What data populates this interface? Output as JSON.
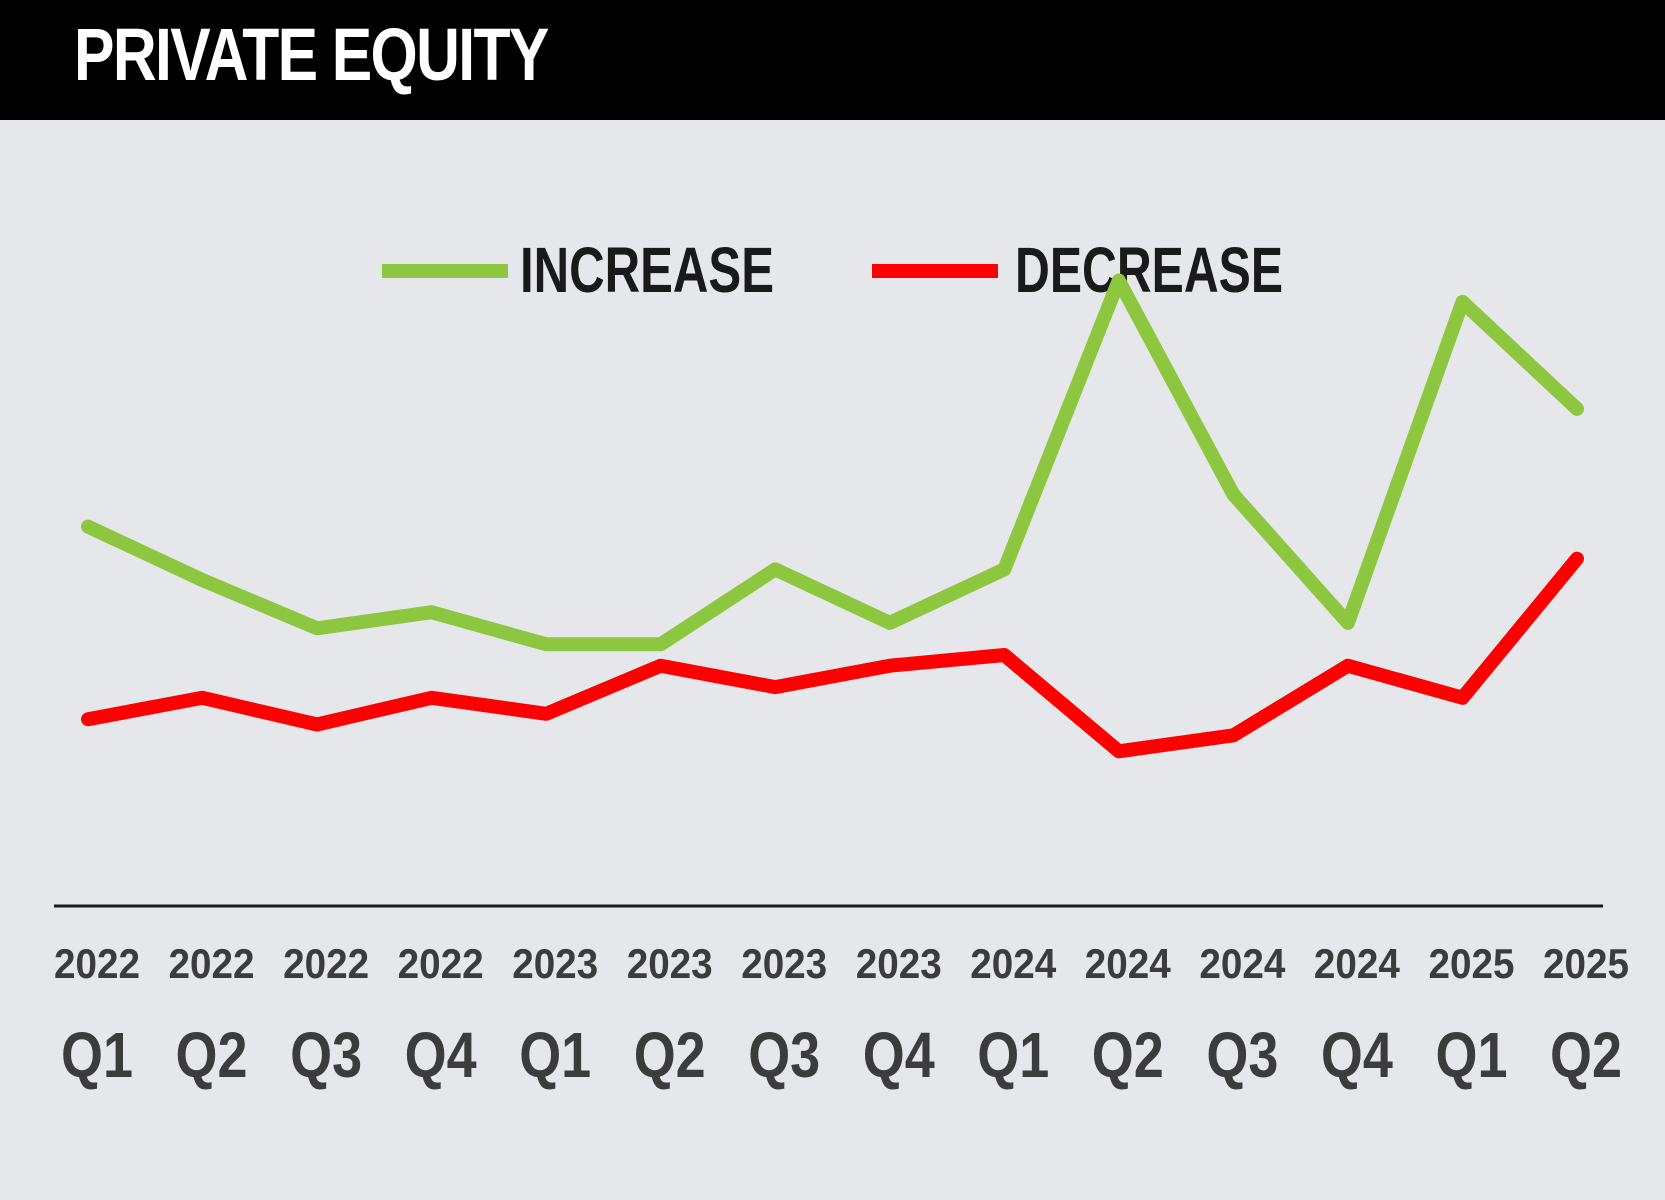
{
  "title": "PRIVATE EQUITY",
  "colors": {
    "increase": "#8dc63f",
    "decrease": "#ff0000",
    "background": "#e6e7eb",
    "title_bar": "#000000"
  },
  "chart_data": {
    "type": "line",
    "title": "PRIVATE EQUITY",
    "xlabel": "",
    "ylabel": "",
    "grid": false,
    "legend_placement": "top-center",
    "categories": [
      {
        "year": "2022",
        "quarter": "Q1"
      },
      {
        "year": "2022",
        "quarter": "Q2"
      },
      {
        "year": "2022",
        "quarter": "Q3"
      },
      {
        "year": "2022",
        "quarter": "Q4"
      },
      {
        "year": "2023",
        "quarter": "Q1"
      },
      {
        "year": "2023",
        "quarter": "Q2"
      },
      {
        "year": "2023",
        "quarter": "Q3"
      },
      {
        "year": "2023",
        "quarter": "Q4"
      },
      {
        "year": "2024",
        "quarter": "Q1"
      },
      {
        "year": "2024",
        "quarter": "Q2"
      },
      {
        "year": "2024",
        "quarter": "Q3"
      },
      {
        "year": "2024",
        "quarter": "Q4"
      },
      {
        "year": "2025",
        "quarter": "Q1"
      },
      {
        "year": "2025",
        "quarter": "Q2"
      }
    ],
    "ylim": [
      0,
      100
    ],
    "series": [
      {
        "name": "INCREASE",
        "color": "#8dc63f",
        "values": [
          62,
          57,
          52.5,
          54,
          51,
          51,
          58,
          53,
          58,
          85,
          65,
          53,
          83,
          73
        ]
      },
      {
        "name": "DECREASE",
        "color": "#ff0000",
        "values": [
          44,
          46,
          43.5,
          46,
          44.5,
          49,
          47,
          49,
          50,
          41,
          42.5,
          49,
          46,
          59
        ]
      }
    ]
  }
}
